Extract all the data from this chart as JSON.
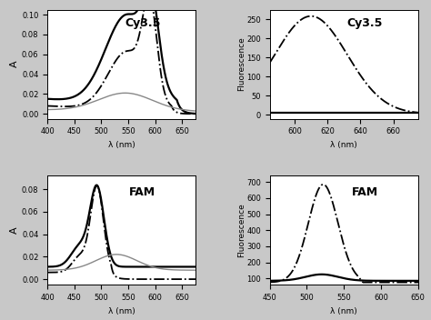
{
  "panels": {
    "cy35_abs": {
      "title": "Cy3.5",
      "xlabel": "λ (nm)",
      "ylabel": "A",
      "xlim": [
        400,
        675
      ],
      "ylim": [
        -0.005,
        0.105
      ],
      "yticks": [
        0.0,
        0.02,
        0.04,
        0.06,
        0.08,
        0.1
      ],
      "xticks": [
        400,
        450,
        500,
        550,
        600,
        650
      ]
    },
    "cy35_fl": {
      "title": "Cy3.5",
      "xlabel": "λ (nm)",
      "ylabel": "Fluorescence",
      "xlim": [
        585,
        675
      ],
      "ylim": [
        -10,
        275
      ],
      "yticks": [
        0,
        50,
        100,
        150,
        200,
        250
      ],
      "xticks": [
        600,
        620,
        640,
        660
      ]
    },
    "fam_abs": {
      "title": "FAM",
      "xlabel": "λ (nm)",
      "ylabel": "A",
      "xlim": [
        400,
        675
      ],
      "ylim": [
        -0.005,
        0.092
      ],
      "yticks": [
        0.0,
        0.02,
        0.04,
        0.06,
        0.08
      ],
      "xticks": [
        400,
        450,
        500,
        550,
        600,
        650
      ]
    },
    "fam_fl": {
      "title": "FAM",
      "xlabel": "λ (nm)",
      "ylabel": "Fluorescence",
      "xlim": [
        450,
        650
      ],
      "ylim": [
        60,
        740
      ],
      "yticks": [
        100,
        200,
        300,
        400,
        500,
        600,
        700
      ],
      "xticks": [
        450,
        500,
        550,
        600,
        650
      ]
    }
  },
  "bg_color": "#c8c8c8",
  "plot_bg": "#ffffff"
}
